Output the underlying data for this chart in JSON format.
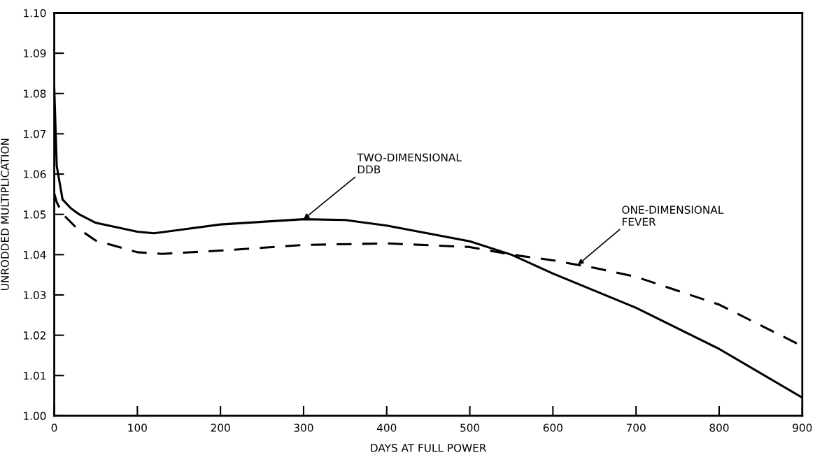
{
  "chart_data": {
    "type": "line",
    "xlabel": "DAYS AT FULL POWER",
    "ylabel": "UNRODDED MULTIPLICATION",
    "xlim": [
      0,
      900
    ],
    "xticks": [
      0,
      100,
      200,
      300,
      400,
      500,
      600,
      700,
      800,
      900
    ],
    "ylim": [
      1.0,
      1.1
    ],
    "yticks": [
      {
        "value": 1.0,
        "label": "1.00"
      },
      {
        "value": 1.01,
        "label": "1.01"
      },
      {
        "value": 1.02,
        "label": "1.02"
      },
      {
        "value": 1.03,
        "label": "1.03"
      },
      {
        "value": 1.04,
        "label": "1.04"
      },
      {
        "value": 1.05,
        "label": "1.05"
      },
      {
        "value": 1.06,
        "label": "1.06"
      },
      {
        "value": 1.07,
        "label": "1.07"
      },
      {
        "value": 1.08,
        "label": "1.08"
      },
      {
        "value": 1.09,
        "label": "1.09"
      },
      {
        "value": 1.1,
        "label": "1.10"
      }
    ],
    "grid": false,
    "legend": false,
    "marker": "none",
    "series": [
      {
        "color": "#000000",
        "line_style": "solid",
        "x": [
          0,
          1,
          3,
          10,
          20,
          30,
          50,
          100,
          120,
          200,
          300,
          350,
          400,
          500,
          550,
          600,
          700,
          800,
          900
        ],
        "values": [
          1.0815,
          1.075,
          1.062,
          1.0537,
          1.0515,
          1.05,
          1.0479,
          1.0457,
          1.0453,
          1.0475,
          1.0488,
          1.0486,
          1.0472,
          1.0433,
          1.04,
          1.0353,
          1.0268,
          1.0166,
          1.0045
        ]
      },
      {
        "color": "#000000",
        "line_style": "dashed",
        "x": [
          0,
          3,
          10,
          25,
          50,
          100,
          130,
          200,
          300,
          400,
          500,
          550,
          600,
          650,
          700,
          800,
          900
        ],
        "values": [
          1.0552,
          1.053,
          1.0501,
          1.047,
          1.0435,
          1.0406,
          1.0402,
          1.041,
          1.0424,
          1.0428,
          1.0419,
          1.04,
          1.0386,
          1.0367,
          1.0345,
          1.0276,
          1.0173
        ]
      }
    ],
    "annotations": [
      {
        "text": "TWO-DIMENSIONAL\nDDB",
        "x": 300,
        "y": 1.0488
      },
      {
        "text": "ONE-DIMENSIONAL\nFEVER",
        "x": 630,
        "y": 1.0375
      }
    ]
  }
}
